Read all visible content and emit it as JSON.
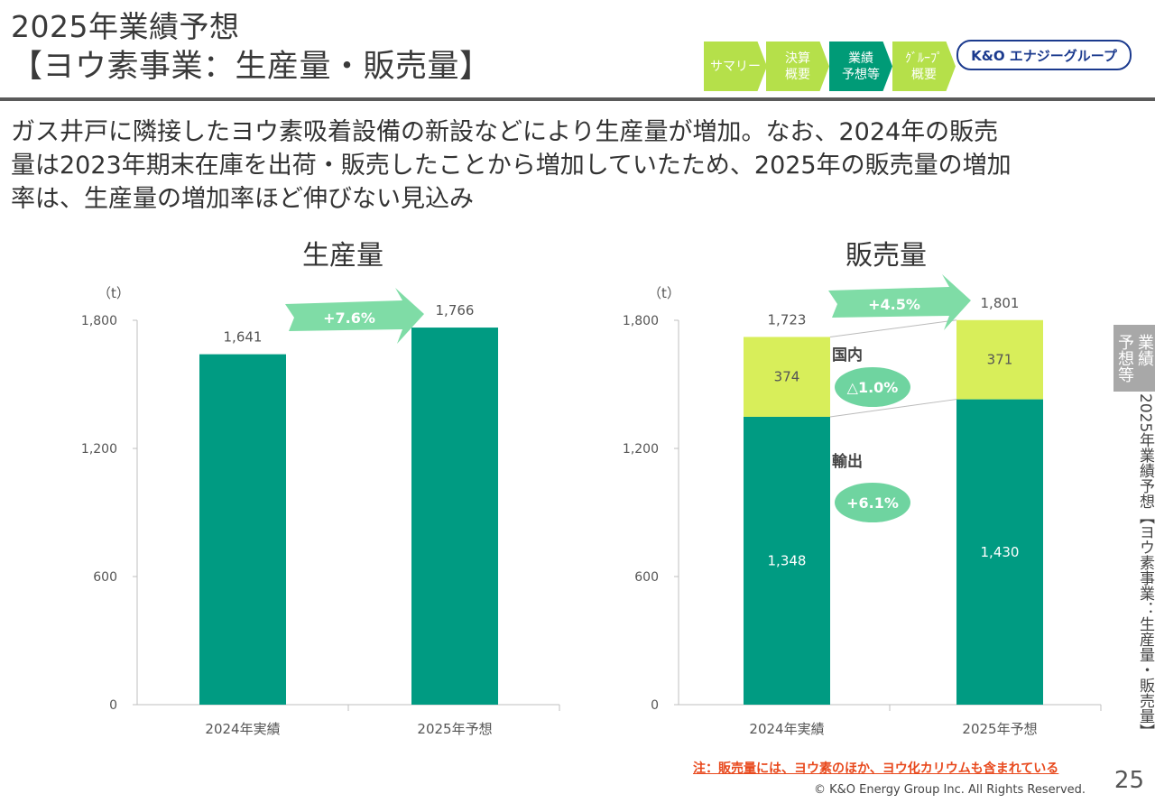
{
  "header": {
    "title_line1": "2025年業績予想",
    "title_line2": "【ヨウ素事業：生産量・販売量】"
  },
  "nav": {
    "items": [
      {
        "label": "サマリー",
        "color": "#b5e04a"
      },
      {
        "label": "決算\n概要",
        "color": "#b5e04a"
      },
      {
        "label": "業績\n予想等",
        "color": "#009b77"
      },
      {
        "label": "ｸﾞﾙｰﾌﾟ\n概要",
        "color": "#b5e04a"
      }
    ],
    "logo": "K&O エナジーグループ"
  },
  "lead": {
    "line1": "ガス井戸に隣接したヨウ素吸着設備の新設などにより生産量が増加。なお、2024年の販売",
    "line2": "量は2023年期末在庫を出荷・販売したことから増加していたため、2025年の販売量の増加",
    "line3": "率は、生産量の増加率ほど伸びない見込み"
  },
  "colors": {
    "dark_green": "#009b82",
    "lime": "#d8ee5a",
    "arrow": "#7fdca6",
    "oval": "#6fd4a0"
  },
  "chart_data": [
    {
      "type": "bar",
      "title": "生産量",
      "unit": "（t）",
      "categories": [
        "2024年実績",
        "2025年予想"
      ],
      "values": [
        1641,
        1766
      ],
      "value_labels": [
        "1,641",
        "1,766"
      ],
      "yticks": [
        "0",
        "600",
        "1,200",
        "1,800"
      ],
      "ylim": [
        0,
        1800
      ],
      "growth": "+7.6%"
    },
    {
      "type": "bar",
      "title": "販売量",
      "unit": "（t）",
      "categories": [
        "2024年実績",
        "2025年予想"
      ],
      "series": [
        {
          "name": "輸出",
          "values": [
            1348,
            1430
          ],
          "labels": [
            "1,348",
            "1,430"
          ],
          "growth": "+6.1%"
        },
        {
          "name": "国内",
          "values": [
            374,
            371
          ],
          "labels": [
            "374",
            "371"
          ],
          "growth": "△1.0%"
        }
      ],
      "totals": [
        "1,723",
        "1,801"
      ],
      "yticks": [
        "0",
        "600",
        "1,200",
        "1,800"
      ],
      "ylim": [
        0,
        1800
      ],
      "growth": "+4.5%"
    }
  ],
  "side": {
    "tab": "業績\n予想等",
    "text": "2025年業績予想【ヨウ素事業：生産量・販売量】"
  },
  "footer": {
    "note": "注：販売量には、ヨウ素のほか、ヨウ化カリウムも含まれている",
    "page": "25",
    "copyright": "© K&O Energy Group Inc. All Rights Reserved."
  }
}
